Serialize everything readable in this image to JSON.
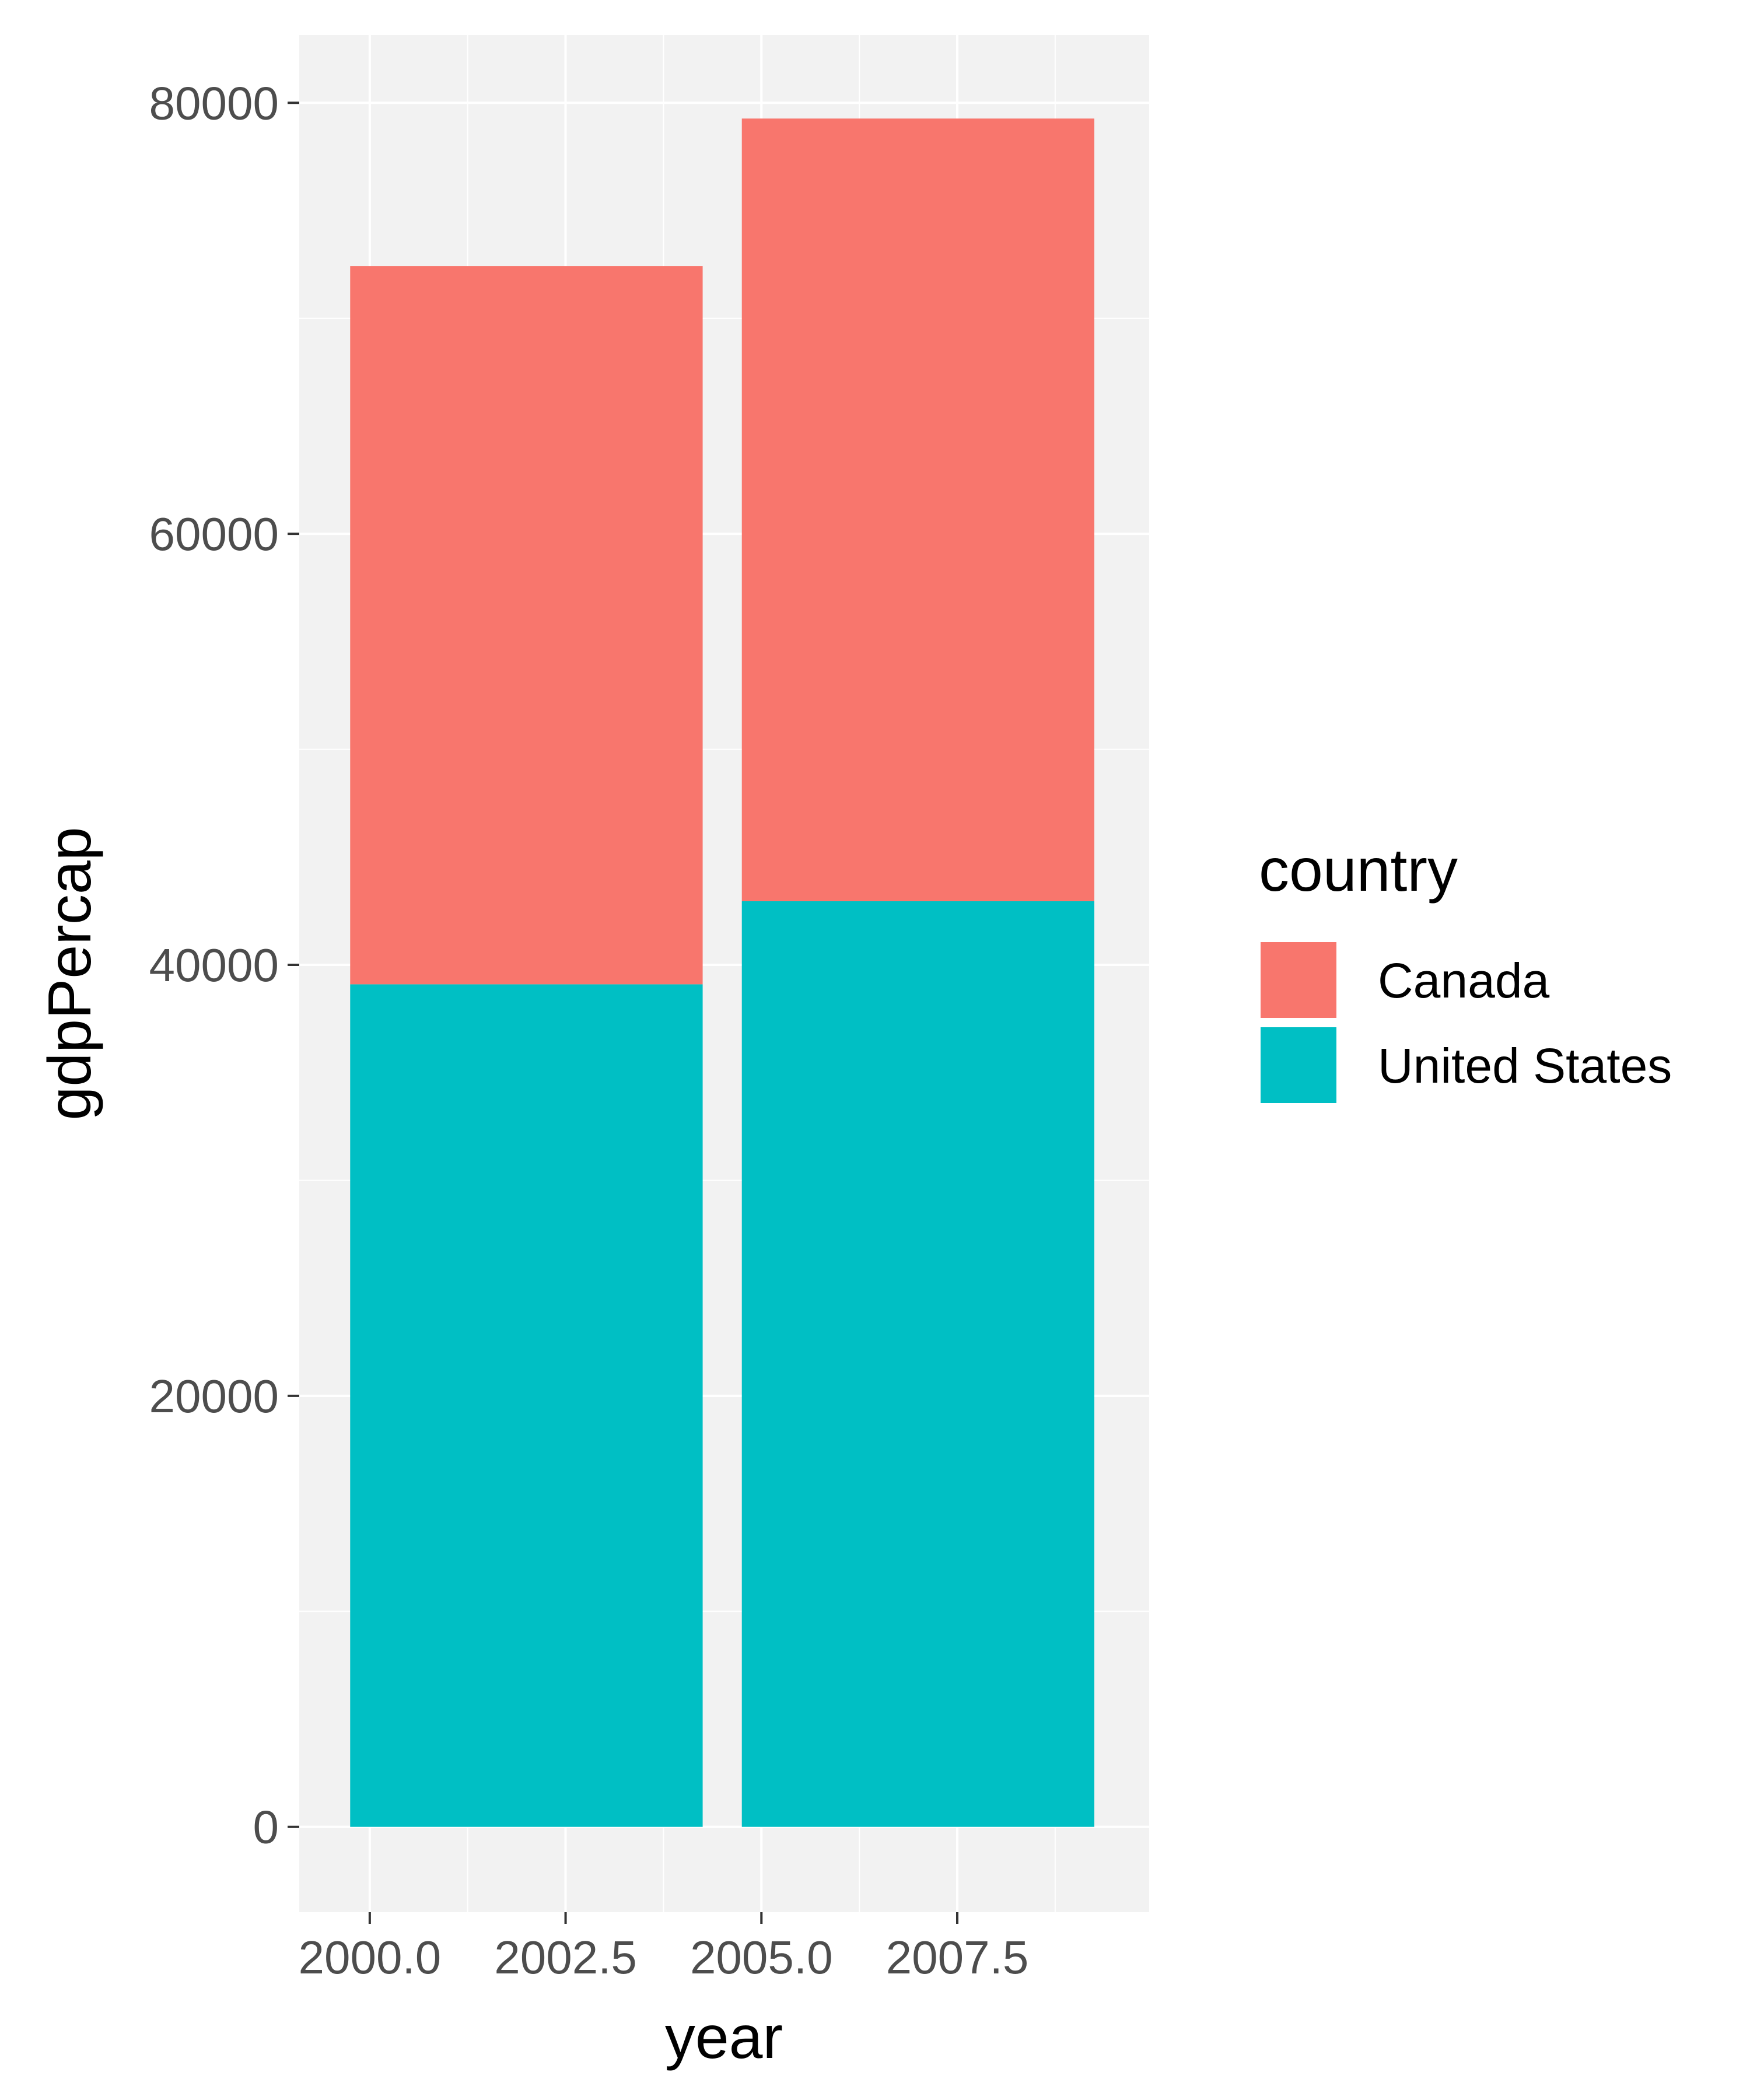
{
  "chart_data": {
    "type": "bar",
    "stacked": true,
    "x": [
      2002,
      2007
    ],
    "series": [
      {
        "name": "United States",
        "values": [
          39097,
          42952
        ],
        "color": "#00BFC4"
      },
      {
        "name": "Canada",
        "values": [
          33329,
          36319
        ],
        "color": "#F8766D"
      }
    ],
    "xlabel": "year",
    "ylabel": "gdpPercap",
    "xlim": [
      1999.1,
      2009.95
    ],
    "ylim": [
      -3959,
      83148
    ],
    "xticks": [
      2000.0,
      2002.5,
      2005.0,
      2007.5
    ],
    "xtick_labels": [
      "2000.0",
      "2002.5",
      "2005.0",
      "2007.5"
    ],
    "yticks": [
      0,
      20000,
      40000,
      60000,
      80000
    ],
    "ytick_labels": [
      "0",
      "20000",
      "40000",
      "60000",
      "80000"
    ],
    "bar_width": 4.5,
    "grid": true,
    "panel_background": "#F2F2F2",
    "legend": {
      "title": "country",
      "placement": "right",
      "items": [
        "Canada",
        "United States"
      ]
    }
  }
}
